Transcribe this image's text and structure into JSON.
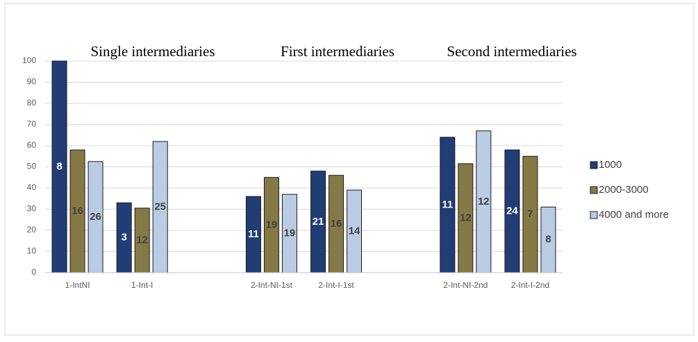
{
  "chart_data": {
    "type": "bar",
    "group_titles": [
      "Single intermediaries",
      "First intermediaries",
      "Second intermediaries"
    ],
    "categories": [
      "1-IntNI",
      "1-Int-I",
      null,
      "2-Int-NI-1st",
      "2-Int-I-1st",
      null,
      "2-Int-NI-2nd",
      "2-Int-I-2nd"
    ],
    "series": [
      {
        "name": "1000",
        "color": "#203e75",
        "values": [
          100,
          33,
          null,
          36,
          48,
          null,
          64,
          58
        ],
        "counts": [
          8,
          3,
          null,
          11,
          21,
          null,
          11,
          24
        ]
      },
      {
        "name": "2000-3000",
        "color": "#857a45",
        "values": [
          58,
          30.5,
          null,
          45,
          46,
          null,
          51.5,
          55
        ],
        "counts": [
          16,
          12,
          null,
          19,
          16,
          null,
          12,
          7
        ]
      },
      {
        "name": "4000 and more",
        "color": "#b9cce4",
        "values": [
          52.5,
          62,
          null,
          37,
          39,
          null,
          67,
          31
        ],
        "counts": [
          26,
          25,
          null,
          19,
          14,
          null,
          12,
          8
        ]
      }
    ],
    "ylim": [
      0,
      100
    ],
    "yticks": [
      0,
      10,
      20,
      30,
      40,
      50,
      60,
      70,
      80,
      90,
      100
    ],
    "grid": true,
    "legend": "right"
  }
}
